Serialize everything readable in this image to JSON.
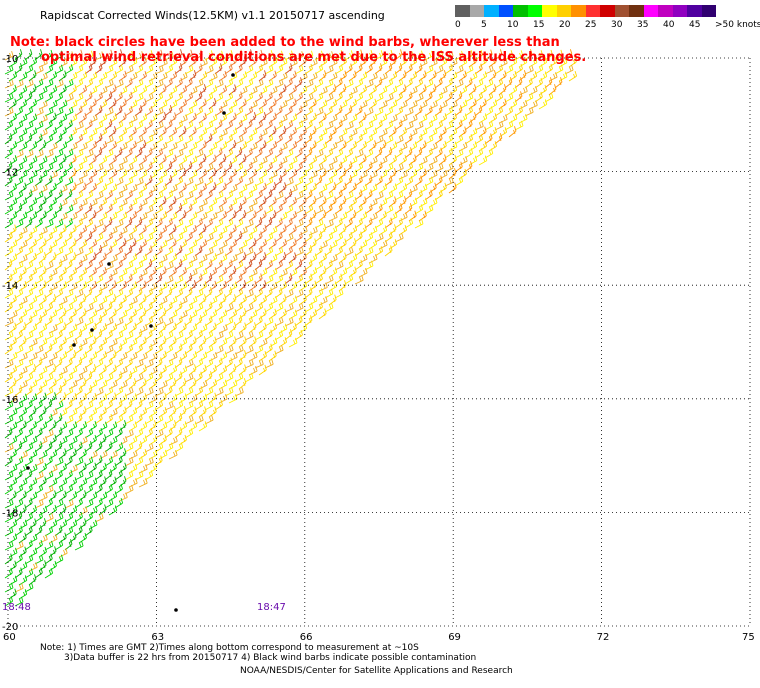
{
  "title": "Rapidscat Corrected Winds(12.5KM) v1.1 20150717 ascending",
  "note_line1": "Note: black circles have been added to the wind barbs, wherever less than",
  "note_line2": "optimal wind retrieval conditions are met due to the ISS altitude changes.",
  "colorbar": {
    "labels": [
      "0",
      "5",
      "10",
      "15",
      "20",
      "25",
      "30",
      "35",
      "40",
      "45",
      ">50 knots"
    ],
    "colors": [
      "#606060",
      "#a8a8a8",
      "#00b0ff",
      "#0050ff",
      "#00c000",
      "#00ff00",
      "#ffff00",
      "#ffd000",
      "#ff9000",
      "#ff3030",
      "#d00000",
      "#a05030",
      "#703010",
      "#ff00ff",
      "#c000c0",
      "#9000c0",
      "#5000a0",
      "#300070"
    ]
  },
  "axes": {
    "lat_labels": [
      "-10",
      "-12",
      "-14",
      "-16",
      "-18",
      "-20"
    ],
    "lon_labels": [
      "60",
      "63",
      "66",
      "69",
      "72",
      "75"
    ]
  },
  "time_labels": [
    "18:48",
    "18:47"
  ],
  "footer": {
    "line1": "Note: 1) Times are GMT 2)Times along bottom correspond to measurement at ~10S",
    "line2": "3)Data buffer is 22 hrs from 20150717 4) Black wind barbs indicate possible contamination",
    "line3": "NOAA/NESDIS/Center for Satellite Applications and Research"
  }
}
